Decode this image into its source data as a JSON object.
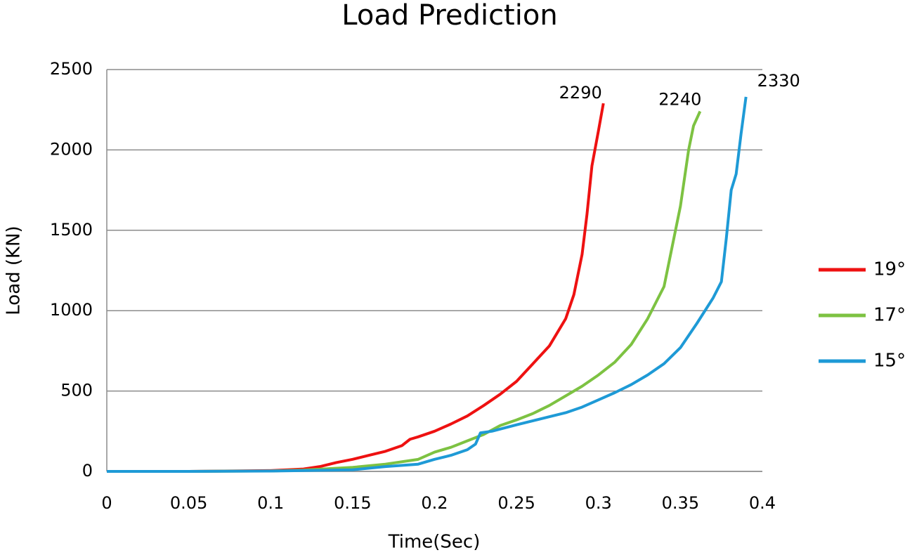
{
  "chart_data": {
    "type": "line",
    "title": "Load Prediction",
    "x_label": "Time(Sec)",
    "y_label": "Load (KN)",
    "xlim": [
      0,
      0.4
    ],
    "xticks": [
      0,
      0.05,
      0.1,
      0.15,
      0.2,
      0.25,
      0.3,
      0.35,
      0.4
    ],
    "ylim": [
      0,
      2500
    ],
    "yticks": [
      0,
      500,
      1000,
      1500,
      2000,
      2500
    ],
    "grid": true,
    "legend": "right",
    "end_labels": true,
    "series": [
      {
        "name": "19°",
        "color": "#ee1111",
        "x": [
          0,
          0.05,
          0.1,
          0.12,
          0.13,
          0.14,
          0.15,
          0.16,
          0.17,
          0.18,
          0.185,
          0.19,
          0.2,
          0.21,
          0.22,
          0.23,
          0.24,
          0.25,
          0.26,
          0.27,
          0.28,
          0.285,
          0.29,
          0.293,
          0.296,
          0.3,
          0.303
        ],
        "values": [
          0,
          0,
          5,
          15,
          30,
          55,
          75,
          100,
          125,
          160,
          200,
          215,
          250,
          295,
          345,
          410,
          480,
          560,
          670,
          780,
          950,
          1100,
          1350,
          1600,
          1900,
          2120,
          2290
        ]
      },
      {
        "name": "17°",
        "color": "#7dc242",
        "x": [
          0,
          0.05,
          0.1,
          0.12,
          0.15,
          0.17,
          0.19,
          0.2,
          0.21,
          0.22,
          0.23,
          0.24,
          0.25,
          0.26,
          0.27,
          0.28,
          0.29,
          0.3,
          0.31,
          0.32,
          0.33,
          0.34,
          0.345,
          0.35,
          0.355,
          0.358,
          0.362
        ],
        "values": [
          0,
          0,
          3,
          8,
          25,
          45,
          75,
          120,
          150,
          190,
          230,
          285,
          320,
          360,
          410,
          470,
          530,
          600,
          680,
          790,
          950,
          1150,
          1400,
          1650,
          2000,
          2150,
          2240
        ]
      },
      {
        "name": "15°",
        "color": "#1e9ad6",
        "x": [
          0,
          0.05,
          0.1,
          0.15,
          0.17,
          0.19,
          0.2,
          0.21,
          0.22,
          0.225,
          0.228,
          0.235,
          0.25,
          0.26,
          0.27,
          0.28,
          0.29,
          0.3,
          0.31,
          0.32,
          0.33,
          0.34,
          0.35,
          0.36,
          0.37,
          0.375,
          0.378,
          0.381,
          0.384,
          0.387,
          0.39
        ],
        "values": [
          0,
          0,
          2,
          10,
          30,
          45,
          75,
          100,
          135,
          170,
          240,
          250,
          290,
          315,
          340,
          365,
          400,
          445,
          490,
          540,
          600,
          670,
          770,
          920,
          1080,
          1180,
          1450,
          1750,
          1850,
          2100,
          2330
        ]
      }
    ]
  }
}
